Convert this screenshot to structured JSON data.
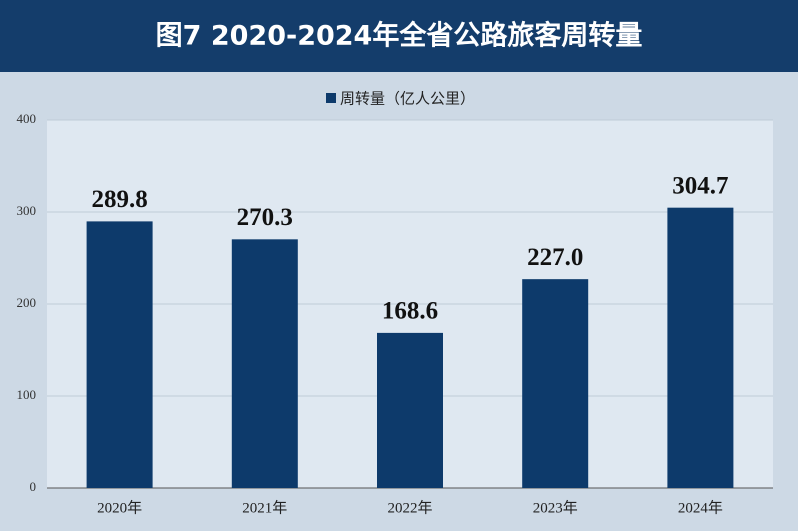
{
  "chart_data": {
    "type": "bar",
    "title": "图7  2020-2024年全省公路旅客周转量",
    "categories": [
      "2020年",
      "2021年",
      "2022年",
      "2023年",
      "2024年"
    ],
    "series": [
      {
        "name": "周转量（亿人公里）",
        "color": "#0d3a6b",
        "values": [
          289.8,
          270.3,
          168.6,
          227.0,
          304.7
        ],
        "value_labels": [
          "289.8",
          "270.3",
          "168.6",
          "227.0",
          "304.7"
        ]
      }
    ],
    "ylim": [
      0,
      400
    ],
    "yticks": [
      0,
      100,
      200,
      300,
      400
    ],
    "grid": true,
    "legend": "top"
  }
}
